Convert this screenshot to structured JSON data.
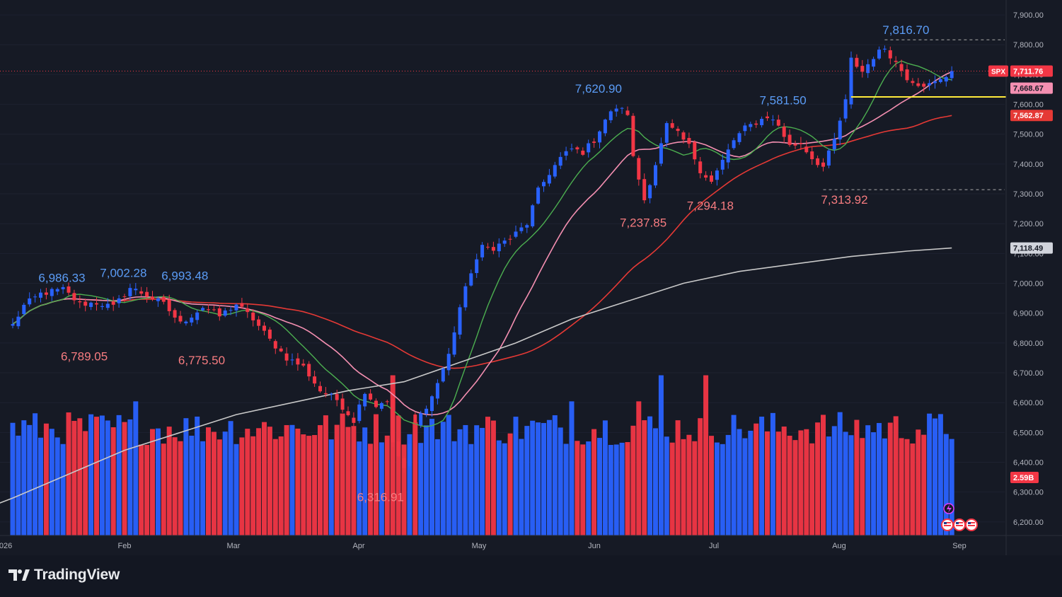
{
  "brand": {
    "name": "TradingView",
    "icon": "tradingview-logo-icon"
  },
  "colors": {
    "background": "#161a25",
    "up": "#2962ff",
    "down": "#f23645",
    "ma_green": "#4caf50",
    "ma_pink": "#f48fb1",
    "ma_red": "#e53935",
    "ma_gray": "#c9c9c9",
    "support_line": "#ffeb3b",
    "axis_text": "#b2b5be",
    "high_label": "#5b9cf6",
    "low_label": "#f77c80"
  },
  "chart_data": {
    "type": "candlestick",
    "symbol": "SPX",
    "last_price": "7,711.76",
    "price_tags": [
      {
        "label": "7,711.76",
        "kind": "last"
      },
      {
        "label": "7,668.67",
        "kind": "ma_pink"
      },
      {
        "label": "7,562.87",
        "kind": "ma_red"
      },
      {
        "label": "7,118.49",
        "kind": "ma_gray"
      }
    ],
    "volume_tag": "2.59B",
    "y_axis": {
      "ticks": [
        "7,900.00",
        "7,800.00",
        "7,700.00",
        "7,600.00",
        "7,500.00",
        "7,400.00",
        "7,300.00",
        "7,200.00",
        "7,100.00",
        "7,000.00",
        "6,900.00",
        "6,800.00",
        "6,700.00",
        "6,600.00",
        "6,500.00",
        "6,400.00",
        "6,300.00",
        "6,200.00"
      ],
      "range": [
        6100,
        7950
      ]
    },
    "x_axis": {
      "ticks": [
        "026",
        "Feb",
        "Mar",
        "Apr",
        "May",
        "Jun",
        "Jul",
        "Aug",
        "Sep"
      ]
    },
    "annotations": [
      {
        "text": "7,816.70",
        "type": "high",
        "value": 7816.7
      },
      {
        "text": "7,620.90",
        "type": "high",
        "value": 7620.9
      },
      {
        "text": "7,581.50",
        "type": "high",
        "value": 7581.5
      },
      {
        "text": "6,986.33",
        "type": "high",
        "value": 6986.33
      },
      {
        "text": "7,002.28",
        "type": "high",
        "value": 7002.28
      },
      {
        "text": "6,993.48",
        "type": "high",
        "value": 6993.48
      },
      {
        "text": "6,789.05",
        "type": "low",
        "value": 6789.05
      },
      {
        "text": "6,775.50",
        "type": "low",
        "value": 6775.5
      },
      {
        "text": "7,237.85",
        "type": "low",
        "value": 7237.85
      },
      {
        "text": "7,294.18",
        "type": "low",
        "value": 7294.18
      },
      {
        "text": "7,313.92",
        "type": "low",
        "value": 7313.92
      },
      {
        "text": "6,316.91",
        "type": "low",
        "value": 6316.91
      }
    ],
    "support_level": 7625,
    "ohlc_keypoints": [
      [
        0,
        6860
      ],
      [
        2,
        6925
      ],
      [
        5,
        6965
      ],
      [
        9,
        6980
      ],
      [
        12,
        6930
      ],
      [
        15,
        6935
      ],
      [
        18,
        6920
      ],
      [
        21,
        6985
      ],
      [
        24,
        6960
      ],
      [
        27,
        6930
      ],
      [
        30,
        6865
      ],
      [
        34,
        6920
      ],
      [
        37,
        6890
      ],
      [
        40,
        6930
      ],
      [
        43,
        6880
      ],
      [
        46,
        6810
      ],
      [
        49,
        6750
      ],
      [
        52,
        6720
      ],
      [
        55,
        6640
      ],
      [
        58,
        6610
      ],
      [
        61,
        6540
      ],
      [
        63,
        6640
      ],
      [
        65,
        6590
      ],
      [
        67,
        6610
      ],
      [
        68,
        6460
      ],
      [
        70,
        6380
      ],
      [
        72,
        6530
      ],
      [
        75,
        6620
      ],
      [
        78,
        6760
      ],
      [
        80,
        6920
      ],
      [
        82,
        7040
      ],
      [
        84,
        7120
      ],
      [
        86,
        7120
      ],
      [
        89,
        7150
      ],
      [
        92,
        7200
      ],
      [
        94,
        7310
      ],
      [
        96,
        7370
      ],
      [
        98,
        7420
      ],
      [
        100,
        7450
      ],
      [
        102,
        7440
      ],
      [
        104,
        7480
      ],
      [
        106,
        7550
      ],
      [
        108,
        7590
      ],
      [
        110,
        7570
      ],
      [
        111,
        7420
      ],
      [
        113,
        7280
      ],
      [
        115,
        7400
      ],
      [
        117,
        7530
      ],
      [
        119,
        7500
      ],
      [
        121,
        7460
      ],
      [
        123,
        7380
      ],
      [
        125,
        7340
      ],
      [
        127,
        7410
      ],
      [
        129,
        7480
      ],
      [
        131,
        7520
      ],
      [
        133,
        7540
      ],
      [
        135,
        7560
      ],
      [
        137,
        7530
      ],
      [
        139,
        7460
      ],
      [
        141,
        7470
      ],
      [
        143,
        7420
      ],
      [
        145,
        7390
      ],
      [
        147,
        7480
      ],
      [
        149,
        7610
      ],
      [
        150,
        7750
      ],
      [
        152,
        7710
      ],
      [
        154,
        7760
      ],
      [
        156,
        7790
      ],
      [
        158,
        7740
      ],
      [
        160,
        7690
      ],
      [
        162,
        7670
      ],
      [
        164,
        7665
      ],
      [
        166,
        7680
      ],
      [
        168,
        7710
      ]
    ],
    "ma_params": {
      "green": 10,
      "pink": 20,
      "red": 50
    },
    "gray_ma": [
      [
        -7,
        6230
      ],
      [
        0,
        6280
      ],
      [
        20,
        6440
      ],
      [
        40,
        6560
      ],
      [
        60,
        6640
      ],
      [
        70,
        6670
      ],
      [
        80,
        6735
      ],
      [
        90,
        6800
      ],
      [
        100,
        6880
      ],
      [
        110,
        6940
      ],
      [
        120,
        7000
      ],
      [
        130,
        7040
      ],
      [
        140,
        7065
      ],
      [
        150,
        7090
      ],
      [
        160,
        7108
      ],
      [
        168,
        7118.49
      ]
    ],
    "volume_range_billions": [
      0,
      4.5
    ],
    "volume_base_billions": 2.7
  }
}
